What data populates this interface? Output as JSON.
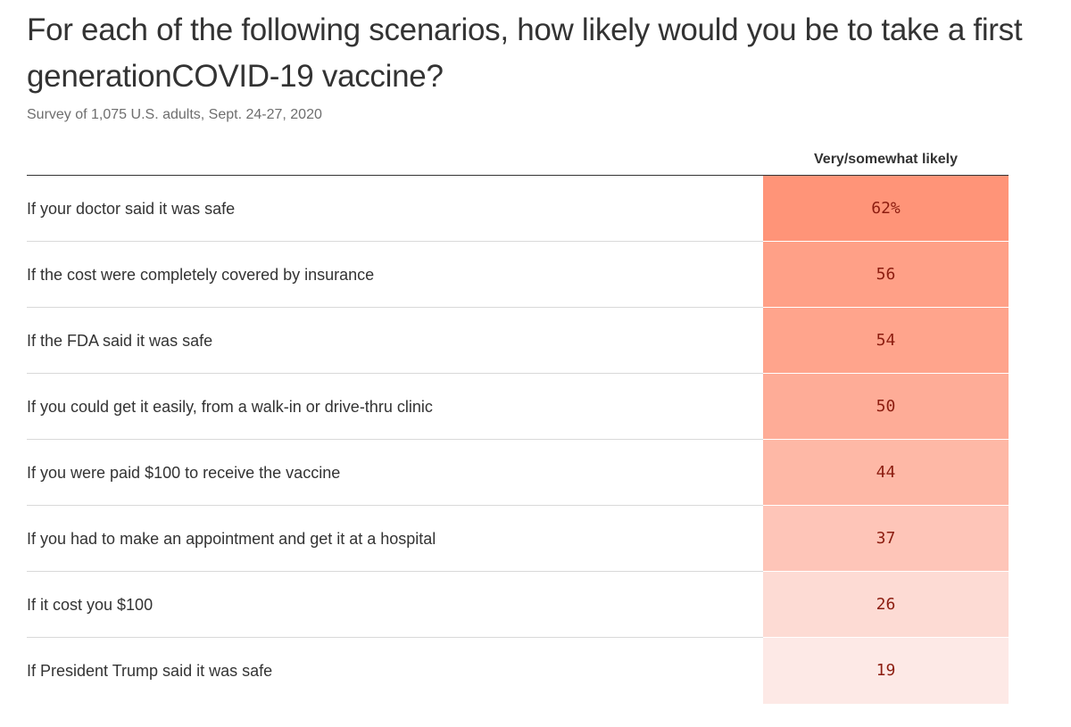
{
  "chart_data": {
    "type": "table",
    "title": "For each of the following scenarios, how likely would you be to take a first generationCOVID-19 vaccine?",
    "subtitle": "Survey of 1,075 U.S. adults, Sept. 24-27, 2020",
    "column_header": "Very/somewhat likely",
    "rows": [
      {
        "label": "If your doctor said it was safe",
        "value": 62,
        "display": "62%"
      },
      {
        "label": "If the cost were completely covered by insurance",
        "value": 56,
        "display": "56"
      },
      {
        "label": "If the FDA said it was safe",
        "value": 54,
        "display": "54"
      },
      {
        "label": "If you could get it easily, from a walk-in or drive-thru clinic",
        "value": 50,
        "display": "50"
      },
      {
        "label": "If you were paid $100 to receive the vaccine",
        "value": 44,
        "display": "44"
      },
      {
        "label": "If you had to make an appointment and get it at a hospital",
        "value": 37,
        "display": "37"
      },
      {
        "label": "If it cost you $100",
        "value": 26,
        "display": "26"
      },
      {
        "label": "If President Trump said it was safe",
        "value": 19,
        "display": "19"
      }
    ],
    "color_scale": {
      "low_color": "#fde9e6",
      "high_color": "#ff9478",
      "text_color": "#8c1d10"
    }
  }
}
